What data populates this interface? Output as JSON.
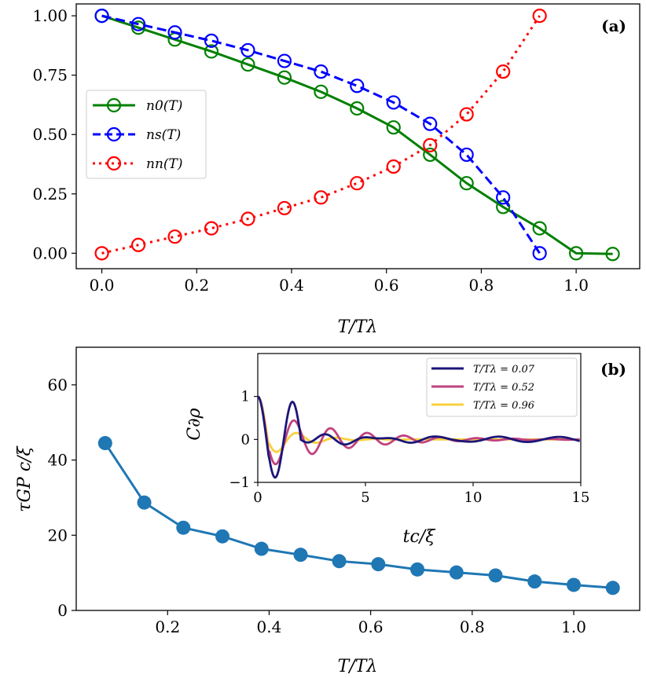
{
  "chart_data": [
    {
      "type": "line",
      "panel_label": "(a)",
      "xlabel": "T/Tλ",
      "ylabel": "",
      "xlim": [
        -0.054,
        1.134
      ],
      "ylim": [
        -0.065,
        1.05
      ],
      "xticks": [
        "0.0",
        "0.2",
        "0.4",
        "0.6",
        "0.8",
        "1.0"
      ],
      "yticks": [
        "0.00",
        "0.25",
        "0.50",
        "0.75",
        "1.00"
      ],
      "legend_position": "center-left",
      "series": [
        {
          "name": "n0(T)",
          "color": "#008000",
          "style": "solid",
          "x": [
            0.0,
            0.077,
            0.154,
            0.231,
            0.308,
            0.385,
            0.462,
            0.538,
            0.615,
            0.692,
            0.769,
            0.846,
            0.923,
            1.0,
            1.077
          ],
          "y": [
            1.0,
            0.95,
            0.9,
            0.85,
            0.795,
            0.74,
            0.68,
            0.61,
            0.53,
            0.415,
            0.295,
            0.195,
            0.105,
            0.0,
            -0.003
          ]
        },
        {
          "name": "ns(T)",
          "color": "#0000ff",
          "style": "dashed",
          "x": [
            0.0,
            0.077,
            0.154,
            0.231,
            0.308,
            0.385,
            0.462,
            0.538,
            0.615,
            0.692,
            0.769,
            0.846,
            0.923
          ],
          "y": [
            1.0,
            0.965,
            0.93,
            0.895,
            0.855,
            0.81,
            0.765,
            0.705,
            0.635,
            0.545,
            0.415,
            0.235,
            0.0
          ]
        },
        {
          "name": "nn(T)",
          "color": "#ff0000",
          "style": "dotted",
          "x": [
            0.0,
            0.077,
            0.154,
            0.231,
            0.308,
            0.385,
            0.462,
            0.538,
            0.615,
            0.692,
            0.769,
            0.846,
            0.923
          ],
          "y": [
            0.0,
            0.035,
            0.07,
            0.105,
            0.145,
            0.19,
            0.235,
            0.295,
            0.365,
            0.455,
            0.585,
            0.765,
            1.0
          ]
        }
      ]
    },
    {
      "type": "line",
      "panel_label": "(b)",
      "xlabel": "T/Tλ",
      "ylabel": "τGP c/ξ",
      "xlim": [
        0.02,
        1.13
      ],
      "ylim": [
        0,
        70
      ],
      "xticks": [
        "0.2",
        "0.4",
        "0.6",
        "0.8",
        "1.0"
      ],
      "yticks": [
        "0",
        "20",
        "40",
        "60"
      ],
      "series": [
        {
          "name": "tau",
          "color": "#1f77b4",
          "x": [
            0.077,
            0.154,
            0.231,
            0.308,
            0.385,
            0.462,
            0.538,
            0.615,
            0.692,
            0.769,
            0.846,
            0.923,
            1.0,
            1.077
          ],
          "y": [
            44.5,
            28.7,
            22.0,
            19.7,
            16.4,
            14.8,
            13.1,
            12.3,
            10.9,
            10.1,
            9.3,
            7.7,
            6.8,
            6.0
          ]
        }
      ]
    },
    {
      "type": "line",
      "panel_label": "inset",
      "xlabel": "tc/ξ",
      "ylabel": "C∂ρ",
      "xlim": [
        0,
        15
      ],
      "ylim": [
        -1,
        2
      ],
      "xticks": [
        "0",
        "5",
        "10",
        "15"
      ],
      "yticks": [
        "−1",
        "0",
        "1"
      ],
      "legend_position": "top-right",
      "series": [
        {
          "name": "T/Tλ = 0.07",
          "color": "#1c1678",
          "tau": 60,
          "omega": 3.9,
          "amp": 0.9,
          "tail": 0.06
        },
        {
          "name": "T/Tλ = 0.52",
          "color": "#c0437e",
          "tau": 3.2,
          "omega": 3.7,
          "amp": 0.75,
          "tail": 0.0
        },
        {
          "name": "T/Tλ = 0.96",
          "color": "#f7d13d",
          "tau": 1.4,
          "omega": 3.4,
          "amp": 0.55,
          "tail": 0.0
        }
      ]
    }
  ]
}
